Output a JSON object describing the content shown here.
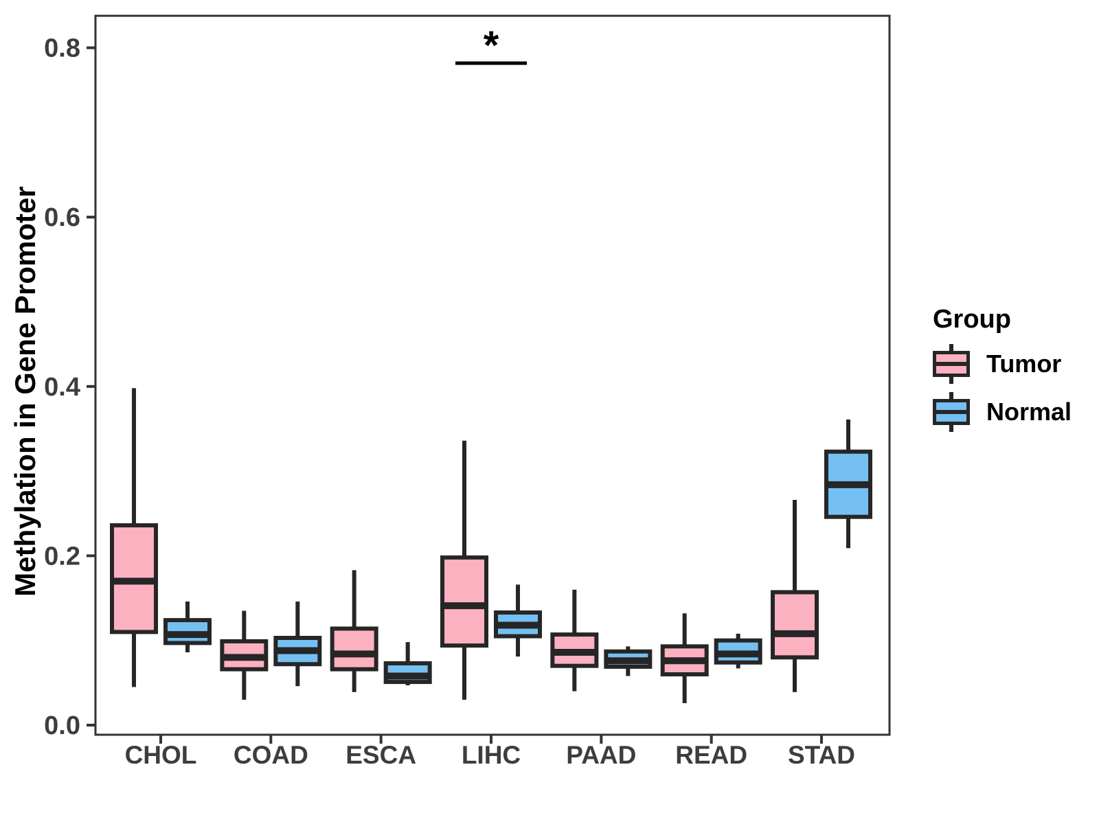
{
  "chart_data": {
    "type": "boxplot",
    "title": "",
    "xlabel": "",
    "ylabel": "Methylation in Gene Promoter",
    "ylim": [
      -0.01,
      0.84
    ],
    "yticks": [
      0.0,
      0.2,
      0.4,
      0.6,
      0.8
    ],
    "ytick_labels": [
      "0.0",
      "0.2",
      "0.4",
      "0.6",
      "0.8"
    ],
    "grid": "off",
    "panel_border": true,
    "categories": [
      "CHOL",
      "COAD",
      "ESCA",
      "LIHC",
      "PAAD",
      "READ",
      "STAD"
    ],
    "legend": {
      "title": "Group",
      "position": "right"
    },
    "series": [
      {
        "name": "Tumor",
        "color": "#FCB1C1",
        "boxes": [
          {
            "category": "CHOL",
            "whisker_low": 0.045,
            "q1": 0.11,
            "median": 0.17,
            "q3": 0.236,
            "whisker_high": 0.398
          },
          {
            "category": "COAD",
            "whisker_low": 0.03,
            "q1": 0.066,
            "median": 0.08,
            "q3": 0.099,
            "whisker_high": 0.135
          },
          {
            "category": "ESCA",
            "whisker_low": 0.039,
            "q1": 0.066,
            "median": 0.084,
            "q3": 0.114,
            "whisker_high": 0.183
          },
          {
            "category": "LIHC",
            "whisker_low": 0.03,
            "q1": 0.094,
            "median": 0.141,
            "q3": 0.198,
            "whisker_high": 0.336
          },
          {
            "category": "PAAD",
            "whisker_low": 0.04,
            "q1": 0.07,
            "median": 0.086,
            "q3": 0.107,
            "whisker_high": 0.16
          },
          {
            "category": "READ",
            "whisker_low": 0.026,
            "q1": 0.06,
            "median": 0.076,
            "q3": 0.093,
            "whisker_high": 0.132
          },
          {
            "category": "STAD",
            "whisker_low": 0.039,
            "q1": 0.08,
            "median": 0.108,
            "q3": 0.157,
            "whisker_high": 0.266
          }
        ]
      },
      {
        "name": "Normal",
        "color": "#74C0F2",
        "boxes": [
          {
            "category": "CHOL",
            "whisker_low": 0.086,
            "q1": 0.097,
            "median": 0.107,
            "q3": 0.124,
            "whisker_high": 0.146
          },
          {
            "category": "COAD",
            "whisker_low": 0.046,
            "q1": 0.072,
            "median": 0.088,
            "q3": 0.103,
            "whisker_high": 0.146
          },
          {
            "category": "ESCA",
            "whisker_low": 0.047,
            "q1": 0.051,
            "median": 0.058,
            "q3": 0.073,
            "whisker_high": 0.098
          },
          {
            "category": "LIHC",
            "whisker_low": 0.081,
            "q1": 0.105,
            "median": 0.118,
            "q3": 0.133,
            "whisker_high": 0.166
          },
          {
            "category": "PAAD",
            "whisker_low": 0.058,
            "q1": 0.069,
            "median": 0.076,
            "q3": 0.087,
            "whisker_high": 0.093
          },
          {
            "category": "READ",
            "whisker_low": 0.067,
            "q1": 0.074,
            "median": 0.084,
            "q3": 0.1,
            "whisker_high": 0.108
          },
          {
            "category": "STAD",
            "whisker_low": 0.209,
            "q1": 0.246,
            "median": 0.284,
            "q3": 0.323,
            "whisker_high": 0.361
          }
        ]
      }
    ],
    "significance": [
      {
        "category": "LIHC",
        "label": "*"
      }
    ],
    "colors": {
      "tumor_fill": "#FCB1C1",
      "normal_fill": "#74C0F2",
      "box_stroke": "#262626",
      "axis_stroke": "#333333",
      "tick_text": "#3d3d3d"
    }
  }
}
